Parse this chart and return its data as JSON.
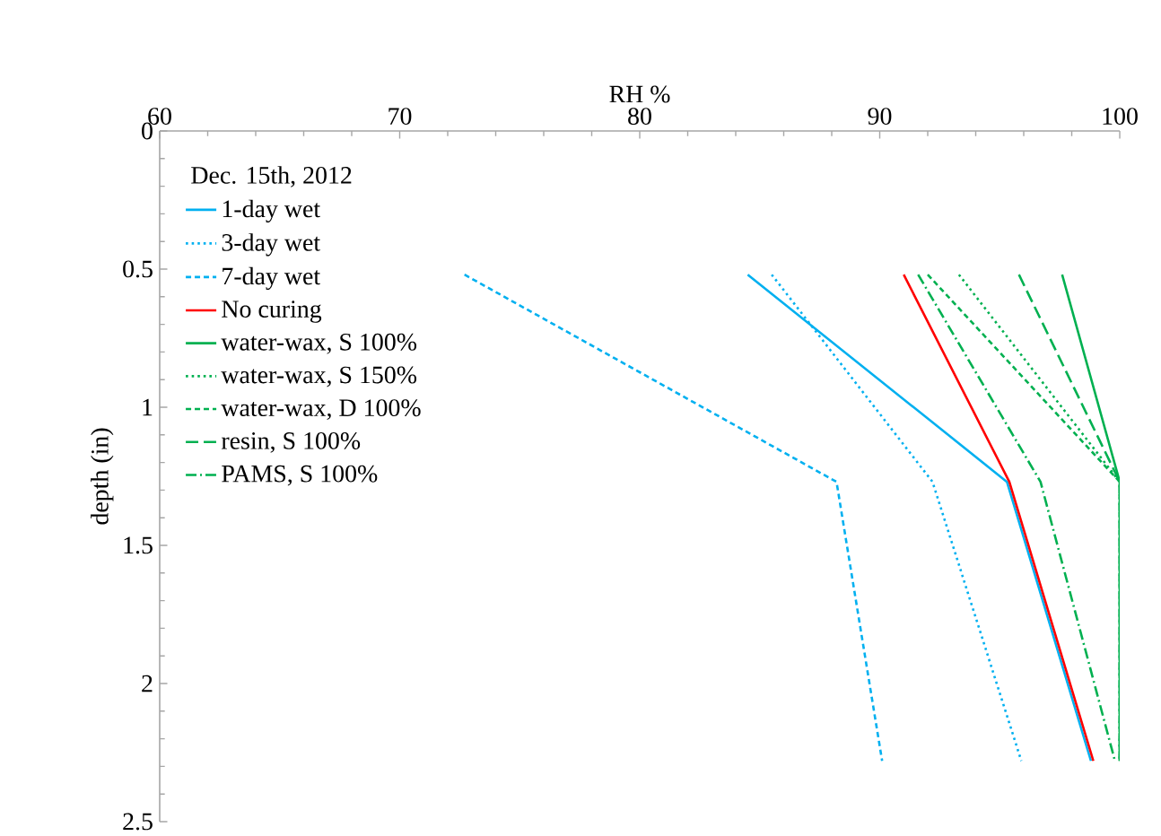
{
  "chart_data": {
    "type": "line",
    "xlabel": "RH %",
    "ylabel": "depth (in)",
    "legend_title": "Dec. 15th, 2012",
    "xlim": [
      60,
      100
    ],
    "xticks": [
      60,
      70,
      80,
      90,
      100
    ],
    "ylim": [
      2.5,
      0
    ],
    "yticks": [
      0,
      0.5,
      1,
      1.5,
      2,
      2.5
    ],
    "grid": false,
    "legend": "top left",
    "marker": "none",
    "series": [
      {
        "name": "1-day wet",
        "color": "#00b0f0",
        "line_style": "solid",
        "x": [
          84.5,
          95.3,
          98.8
        ],
        "values": [
          0.52,
          1.27,
          2.28
        ]
      },
      {
        "name": "3-day wet",
        "color": "#00b0f0",
        "line_style": "dotted",
        "x": [
          85.5,
          92.2,
          95.9
        ],
        "values": [
          0.52,
          1.27,
          2.28
        ]
      },
      {
        "name": "7-day wet",
        "color": "#00b0f0",
        "line_style": "dashed",
        "x": [
          72.7,
          88.2,
          90.1
        ],
        "values": [
          0.52,
          1.27,
          2.28
        ]
      },
      {
        "name": "No curing",
        "color": "#ff0000",
        "line_style": "solid",
        "x": [
          91.0,
          95.4,
          98.9
        ],
        "values": [
          0.52,
          1.27,
          2.28
        ]
      },
      {
        "name": "water-wax, S 100%",
        "color": "#00b050",
        "line_style": "solid",
        "x": [
          97.6,
          100,
          100
        ],
        "values": [
          0.52,
          1.27,
          2.28
        ]
      },
      {
        "name": "water-wax, S 150%",
        "color": "#00b050",
        "line_style": "dotted",
        "x": [
          93.3,
          100,
          100
        ],
        "values": [
          0.52,
          1.27,
          2.28
        ]
      },
      {
        "name": "water-wax, D 100%",
        "color": "#00b050",
        "line_style": "dashed",
        "x": [
          92.0,
          100,
          100
        ],
        "values": [
          0.52,
          1.27,
          2.28
        ]
      },
      {
        "name": "resin, S 100%",
        "color": "#00b050",
        "line_style": "long dashed",
        "x": [
          95.8,
          100,
          100
        ],
        "values": [
          0.52,
          1.27,
          2.28
        ]
      },
      {
        "name": "PAMS, S 100%",
        "color": "#00b050",
        "line_style": "dashdot",
        "x": [
          91.6,
          96.7,
          99.8
        ],
        "values": [
          0.52,
          1.27,
          2.28
        ]
      }
    ]
  }
}
